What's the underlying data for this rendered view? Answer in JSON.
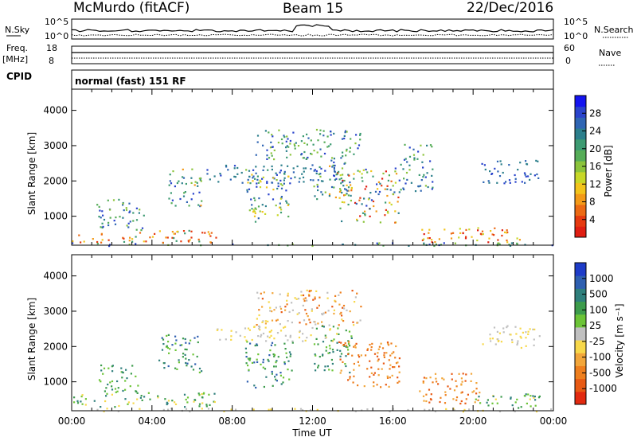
{
  "header": {
    "station": "McMurdo (fitACF)",
    "beam": "Beam 15",
    "date": "22/Dec/2016"
  },
  "strip_labels": {
    "nsky": "N.Sky",
    "nsearch": "N.Search",
    "freq": "Freq.",
    "mhz": "[MHz]",
    "nave": "Nave",
    "cpid": "CPID",
    "cpid_value": "normal (fast) 151 RF",
    "nsky_top": "10^5",
    "nsky_bottom": "10^0",
    "nsearch_top": "10^5",
    "nsearch_bottom": "10^0",
    "freq_top": "18",
    "freq_bottom": "8",
    "nave_top": "60",
    "nave_bottom": "0"
  },
  "chart_data": [
    {
      "type": "heatmap",
      "quantity": "power",
      "ylabel": "Slant Range [km]",
      "xlabel": "",
      "ylim": [
        180,
        4600
      ],
      "yticks": [
        1000,
        2000,
        3000,
        4000
      ],
      "colorbar": {
        "label": "Power [dB]",
        "range": [
          0,
          32
        ],
        "ticks": [
          "4",
          "8",
          "12",
          "16",
          "20",
          "24",
          "28"
        ],
        "colors": [
          "#1414f0",
          "#2a44cc",
          "#2f65b3",
          "#2c7f8c",
          "#3d9b72",
          "#56ad58",
          "#8cc43c",
          "#c8d828",
          "#f2c41c",
          "#f39a18",
          "#ec6a14",
          "#e63a10",
          "#e01e12"
        ]
      }
    },
    {
      "type": "heatmap",
      "quantity": "velocity",
      "ylabel": "Slant Range [km]",
      "xlabel": "Time UT",
      "xlim": [
        "00:00",
        "00:00"
      ],
      "xticks": [
        "00:00",
        "04:00",
        "08:00",
        "12:00",
        "16:00",
        "20:00",
        "00:00"
      ],
      "ylim": [
        180,
        4600
      ],
      "yticks": [
        1000,
        2000,
        3000,
        4000
      ],
      "colorbar": {
        "label": "Velocity [m s⁻¹]",
        "ticks": [
          "1000",
          "500",
          "100",
          "25",
          "-25",
          "-100",
          "-500",
          "-1000"
        ],
        "colors": [
          "#1e3cc8",
          "#2e5fb0",
          "#2f7f7c",
          "#3d9c4c",
          "#6cc437",
          "#c0c0c0",
          "#f7d84a",
          "#f2a63a",
          "#ee7f1e",
          "#e85a14",
          "#e22a10"
        ]
      }
    }
  ]
}
